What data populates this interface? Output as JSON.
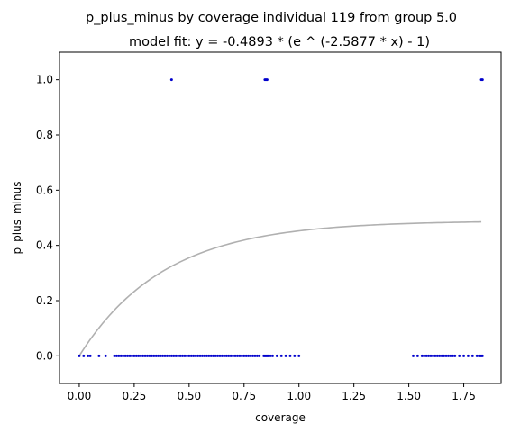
{
  "chart_data": {
    "type": "scatter",
    "title": "p_plus_minus by coverage individual 119 from group 5.0",
    "subtitle": "model fit: y = -0.4893 * (e ^ (-2.5877 * x) - 1)",
    "xlabel": "coverage",
    "ylabel": "p_plus_minus",
    "xlim": [
      -0.09,
      1.92
    ],
    "ylim": [
      -0.1,
      1.1
    ],
    "xticks": [
      "0.00",
      "0.25",
      "0.50",
      "0.75",
      "1.00",
      "1.25",
      "1.50",
      "1.75"
    ],
    "yticks": [
      "0.0",
      "0.2",
      "0.4",
      "0.6",
      "0.8",
      "1.0"
    ],
    "grid": false,
    "colors": {
      "points": "#0000cc",
      "fit": "#b0b0b0"
    },
    "fit": {
      "a": 0.4893,
      "b": 2.5877,
      "x_range": [
        0,
        1.83
      ]
    },
    "points_y1": [
      0.42,
      0.845,
      0.85,
      0.855,
      1.83,
      1.835
    ],
    "points_y0": [
      0.0,
      0.02,
      0.04,
      0.05,
      0.09,
      0.12,
      0.16,
      0.17,
      0.18,
      0.19,
      0.2,
      0.21,
      0.22,
      0.23,
      0.24,
      0.25,
      0.26,
      0.27,
      0.28,
      0.29,
      0.3,
      0.31,
      0.32,
      0.33,
      0.34,
      0.35,
      0.36,
      0.37,
      0.38,
      0.39,
      0.4,
      0.41,
      0.42,
      0.43,
      0.44,
      0.45,
      0.46,
      0.47,
      0.48,
      0.49,
      0.5,
      0.51,
      0.52,
      0.53,
      0.54,
      0.55,
      0.56,
      0.57,
      0.58,
      0.59,
      0.6,
      0.61,
      0.62,
      0.63,
      0.64,
      0.65,
      0.66,
      0.67,
      0.68,
      0.69,
      0.7,
      0.71,
      0.72,
      0.73,
      0.74,
      0.75,
      0.76,
      0.77,
      0.78,
      0.79,
      0.8,
      0.81,
      0.82,
      0.84,
      0.845,
      0.85,
      0.855,
      0.86,
      0.87,
      0.88,
      0.9,
      0.92,
      0.94,
      0.96,
      0.98,
      1.0,
      1.52,
      1.54,
      1.56,
      1.57,
      1.58,
      1.59,
      1.6,
      1.61,
      1.62,
      1.63,
      1.64,
      1.65,
      1.66,
      1.67,
      1.68,
      1.69,
      1.7,
      1.71,
      1.73,
      1.75,
      1.77,
      1.79,
      1.81,
      1.82,
      1.825,
      1.83,
      1.835
    ]
  }
}
